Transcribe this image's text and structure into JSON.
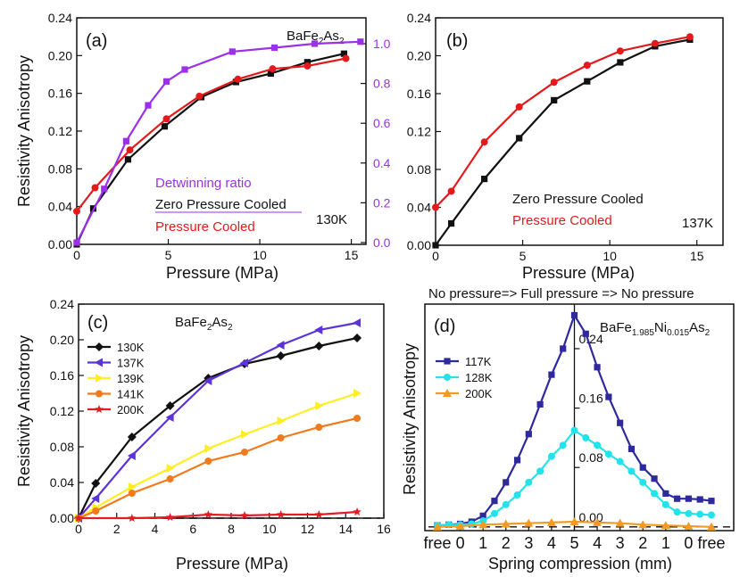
{
  "colors": {
    "black": "#111111",
    "red": "#e31a1c",
    "purple": "#9b30e8",
    "violet": "#5b33d6",
    "yellow": "#ffee22",
    "orange": "#f07a1c",
    "red200": "#e41d24",
    "navy": "#2e2a9e",
    "cyan": "#22e3ea",
    "orange200": "#f29a24"
  },
  "chart_data": [
    {
      "panel": "(a)",
      "type": "line",
      "title": "BaFe2As2",
      "temperature": "130K",
      "xlabel": "Pressure (MPa)",
      "ylabel": "Resistivity Anisotropy",
      "xlim": [
        0,
        15.8
      ],
      "ylim": [
        0,
        0.24
      ],
      "ylim_right": [
        -0.009,
        1.13
      ],
      "xticks": [
        "0",
        "5",
        "10",
        "15"
      ],
      "yticks": [
        "0.00",
        "0.04",
        "0.08",
        "0.12",
        "0.16",
        "0.20",
        "0.24"
      ],
      "yticks_right": [
        "0.0",
        "0.2",
        "0.4",
        "0.6",
        "0.8",
        "1.0"
      ],
      "legend": [
        "Detwinning ratio",
        "Zero Pressure Cooled",
        "Pressure Cooled"
      ],
      "series": [
        {
          "name": "Zero Pressure Cooled",
          "color_key": "black",
          "marker": "square",
          "axis": "left",
          "x": [
            0,
            0.9,
            2.8,
            4.8,
            6.8,
            8.7,
            10.6,
            12.6,
            14.6
          ],
          "y": [
            0,
            0.038,
            0.09,
            0.125,
            0.156,
            0.172,
            0.181,
            0.193,
            0.202
          ]
        },
        {
          "name": "Pressure Cooled",
          "color_key": "red",
          "marker": "circle",
          "axis": "left",
          "x": [
            0,
            1.0,
            2.9,
            4.9,
            6.7,
            8.8,
            10.7,
            12.6,
            14.7
          ],
          "y": [
            0.035,
            0.06,
            0.1,
            0.133,
            0.157,
            0.175,
            0.186,
            0.189,
            0.197
          ]
        },
        {
          "name": "Detwinning ratio",
          "color_key": "purple",
          "marker": "square",
          "axis": "right",
          "x": [
            0,
            1.5,
            2.7,
            3.9,
            4.9,
            5.9,
            8.5,
            10.8,
            13.0,
            15.5
          ],
          "y": [
            0.0,
            0.27,
            0.51,
            0.69,
            0.81,
            0.87,
            0.96,
            0.98,
            1.0,
            1.01
          ]
        }
      ]
    },
    {
      "panel": "(b)",
      "type": "line",
      "temperature": "137K",
      "xlabel": "Pressure (MPa)",
      "ylabel": "",
      "xlim": [
        0,
        16.5
      ],
      "ylim": [
        0,
        0.24
      ],
      "xticks": [
        "0",
        "5",
        "10",
        "15"
      ],
      "yticks": [
        "0.00",
        "0.04",
        "0.08",
        "0.12",
        "0.16",
        "0.20",
        "0.24"
      ],
      "legend": [
        "Zero Pressure Cooled",
        "Pressure Cooled"
      ],
      "series": [
        {
          "name": "Zero Pressure Cooled",
          "color_key": "black",
          "marker": "square",
          "x": [
            0,
            0.9,
            2.8,
            4.8,
            6.8,
            8.7,
            10.6,
            12.6,
            14.6
          ],
          "y": [
            0,
            0.023,
            0.07,
            0.113,
            0.153,
            0.173,
            0.193,
            0.21,
            0.217
          ]
        },
        {
          "name": "Pressure Cooled",
          "color_key": "red",
          "marker": "circle",
          "x": [
            0,
            0.9,
            2.8,
            4.8,
            6.8,
            8.7,
            10.6,
            12.6,
            14.6
          ],
          "y": [
            0.04,
            0.057,
            0.109,
            0.146,
            0.172,
            0.19,
            0.205,
            0.213,
            0.22
          ]
        }
      ]
    },
    {
      "panel": "(c)",
      "type": "line",
      "title": "BaFe2As2",
      "xlabel": "Pressure (MPa)",
      "ylabel": "Resistivity Anisotropy",
      "xlim": [
        0,
        16
      ],
      "ylim": [
        0,
        0.24
      ],
      "xticks": [
        "0",
        "2",
        "4",
        "6",
        "8",
        "10",
        "12",
        "14",
        "16"
      ],
      "yticks": [
        "0.00",
        "0.04",
        "0.08",
        "0.12",
        "0.16",
        "0.20",
        "0.24"
      ],
      "series": [
        {
          "name": "130K",
          "color_key": "black",
          "marker": "diamond",
          "x": [
            0,
            0.9,
            2.8,
            4.8,
            6.8,
            8.7,
            10.6,
            12.6,
            14.6
          ],
          "y": [
            0,
            0.039,
            0.091,
            0.126,
            0.157,
            0.173,
            0.182,
            0.193,
            0.202
          ]
        },
        {
          "name": "137K",
          "color_key": "violet",
          "marker": "triangle-left",
          "x": [
            0,
            0.9,
            2.8,
            4.8,
            6.8,
            8.7,
            10.6,
            12.6,
            14.6
          ],
          "y": [
            0,
            0.022,
            0.07,
            0.113,
            0.154,
            0.174,
            0.194,
            0.211,
            0.219
          ]
        },
        {
          "name": "139K",
          "color_key": "yellow",
          "marker": "triangle-right",
          "x": [
            0,
            0.9,
            2.8,
            4.8,
            6.8,
            8.7,
            10.6,
            12.6,
            14.6
          ],
          "y": [
            0,
            0.012,
            0.035,
            0.056,
            0.078,
            0.094,
            0.109,
            0.126,
            0.14
          ]
        },
        {
          "name": "141K",
          "color_key": "orange",
          "marker": "circle",
          "x": [
            0,
            0.9,
            2.8,
            4.8,
            6.8,
            8.7,
            10.6,
            12.6,
            14.6
          ],
          "y": [
            0,
            0.008,
            0.028,
            0.044,
            0.064,
            0.074,
            0.09,
            0.102,
            0.112
          ]
        },
        {
          "name": "200K",
          "color_key": "red200",
          "marker": "star",
          "x": [
            0,
            2.8,
            4.8,
            6.8,
            8.7,
            10.6,
            12.6,
            14.6
          ],
          "y": [
            0,
            0,
            0.001,
            0.004,
            0.003,
            0.004,
            0.004,
            0.007
          ]
        }
      ],
      "zero_line": true
    },
    {
      "panel": "(d)",
      "type": "line",
      "top_label": "No pressure=> Full pressure => No pressure",
      "title": "BaFe1.985Ni0.015As2",
      "xlabel": "Spring compression (mm)",
      "ylabel": "Resistivity Anisotropy",
      "xticks": [
        "free",
        "0",
        "1",
        "2",
        "3",
        "4",
        "5",
        "4",
        "3",
        "2",
        "1",
        "0",
        "free"
      ],
      "yticks": [
        "0.00",
        "0.08",
        "0.16",
        "0.24"
      ],
      "xlim": [
        0,
        12.5
      ],
      "ylim": [
        -0.005,
        0.3
      ],
      "series": [
        {
          "name": "117K",
          "color_key": "navy",
          "marker": "square",
          "x": [
            0,
            0.5,
            1,
            1.5,
            2,
            2.5,
            3,
            3.5,
            4,
            4.5,
            5,
            5.5,
            6,
            6.5,
            7,
            7.5,
            8,
            8.5,
            9,
            9.5,
            10,
            10.5,
            11,
            11.5,
            12
          ],
          "y": [
            0.002,
            0.003,
            0.004,
            0.007,
            0.015,
            0.035,
            0.06,
            0.09,
            0.125,
            0.165,
            0.205,
            0.24,
            0.285,
            0.26,
            0.215,
            0.175,
            0.14,
            0.105,
            0.08,
            0.065,
            0.045,
            0.038,
            0.038,
            0.037,
            0.035
          ]
        },
        {
          "name": "128K",
          "color_key": "cyan",
          "marker": "circle",
          "x": [
            0,
            0.5,
            1,
            1.5,
            2,
            2.5,
            3,
            3.5,
            4,
            4.5,
            5,
            5.5,
            6,
            6.5,
            7,
            7.5,
            8,
            8.5,
            9,
            9.5,
            10,
            10.5,
            11,
            11.5,
            12
          ],
          "y": [
            0.002,
            0.003,
            0.003,
            0.004,
            0.008,
            0.018,
            0.03,
            0.043,
            0.06,
            0.075,
            0.095,
            0.11,
            0.13,
            0.12,
            0.11,
            0.098,
            0.088,
            0.075,
            0.06,
            0.045,
            0.03,
            0.02,
            0.018,
            0.017,
            0.016
          ]
        },
        {
          "name": "200K",
          "color_key": "orange200",
          "marker": "triangle",
          "x": [
            0,
            1,
            2,
            3,
            4,
            5,
            6,
            7,
            8,
            9,
            10,
            11,
            12
          ],
          "y": [
            0.0,
            0.001,
            0.003,
            0.004,
            0.005,
            0.006,
            0.007,
            0.006,
            0.005,
            0.003,
            0.002,
            0.001,
            0.0
          ]
        }
      ],
      "zero_line": true
    }
  ],
  "text": {
    "a": {
      "panel": "(a)",
      "formula": [
        "BaFe",
        "2",
        "As",
        "2"
      ],
      "temp": "130K",
      "legend1": "Detwinning ratio",
      "legend2": "Zero Pressure Cooled",
      "legend3": "Pressure Cooled",
      "ylabel": "Resistivity Anisotropy",
      "xlabel": "Pressure (MPa)"
    },
    "b": {
      "panel": "(b)",
      "temp": "137K",
      "legend1": "Zero Pressure Cooled",
      "legend2": "Pressure Cooled",
      "xlabel": "Pressure (MPa)"
    },
    "c": {
      "panel": "(c)",
      "formula": [
        "BaFe",
        "2",
        "As",
        "2"
      ],
      "ylabel": "Resistivity Anisotropy",
      "xlabel": "Pressure (MPa)"
    },
    "d": {
      "panel": "(d)",
      "top": "No pressure=> Full pressure => No pressure",
      "formula": [
        "BaFe",
        "1.985",
        "Ni",
        "0.015",
        "As",
        "2"
      ],
      "ylabel": "Resistivity Anisotropy",
      "xlabel": "Spring compression (mm)"
    }
  }
}
